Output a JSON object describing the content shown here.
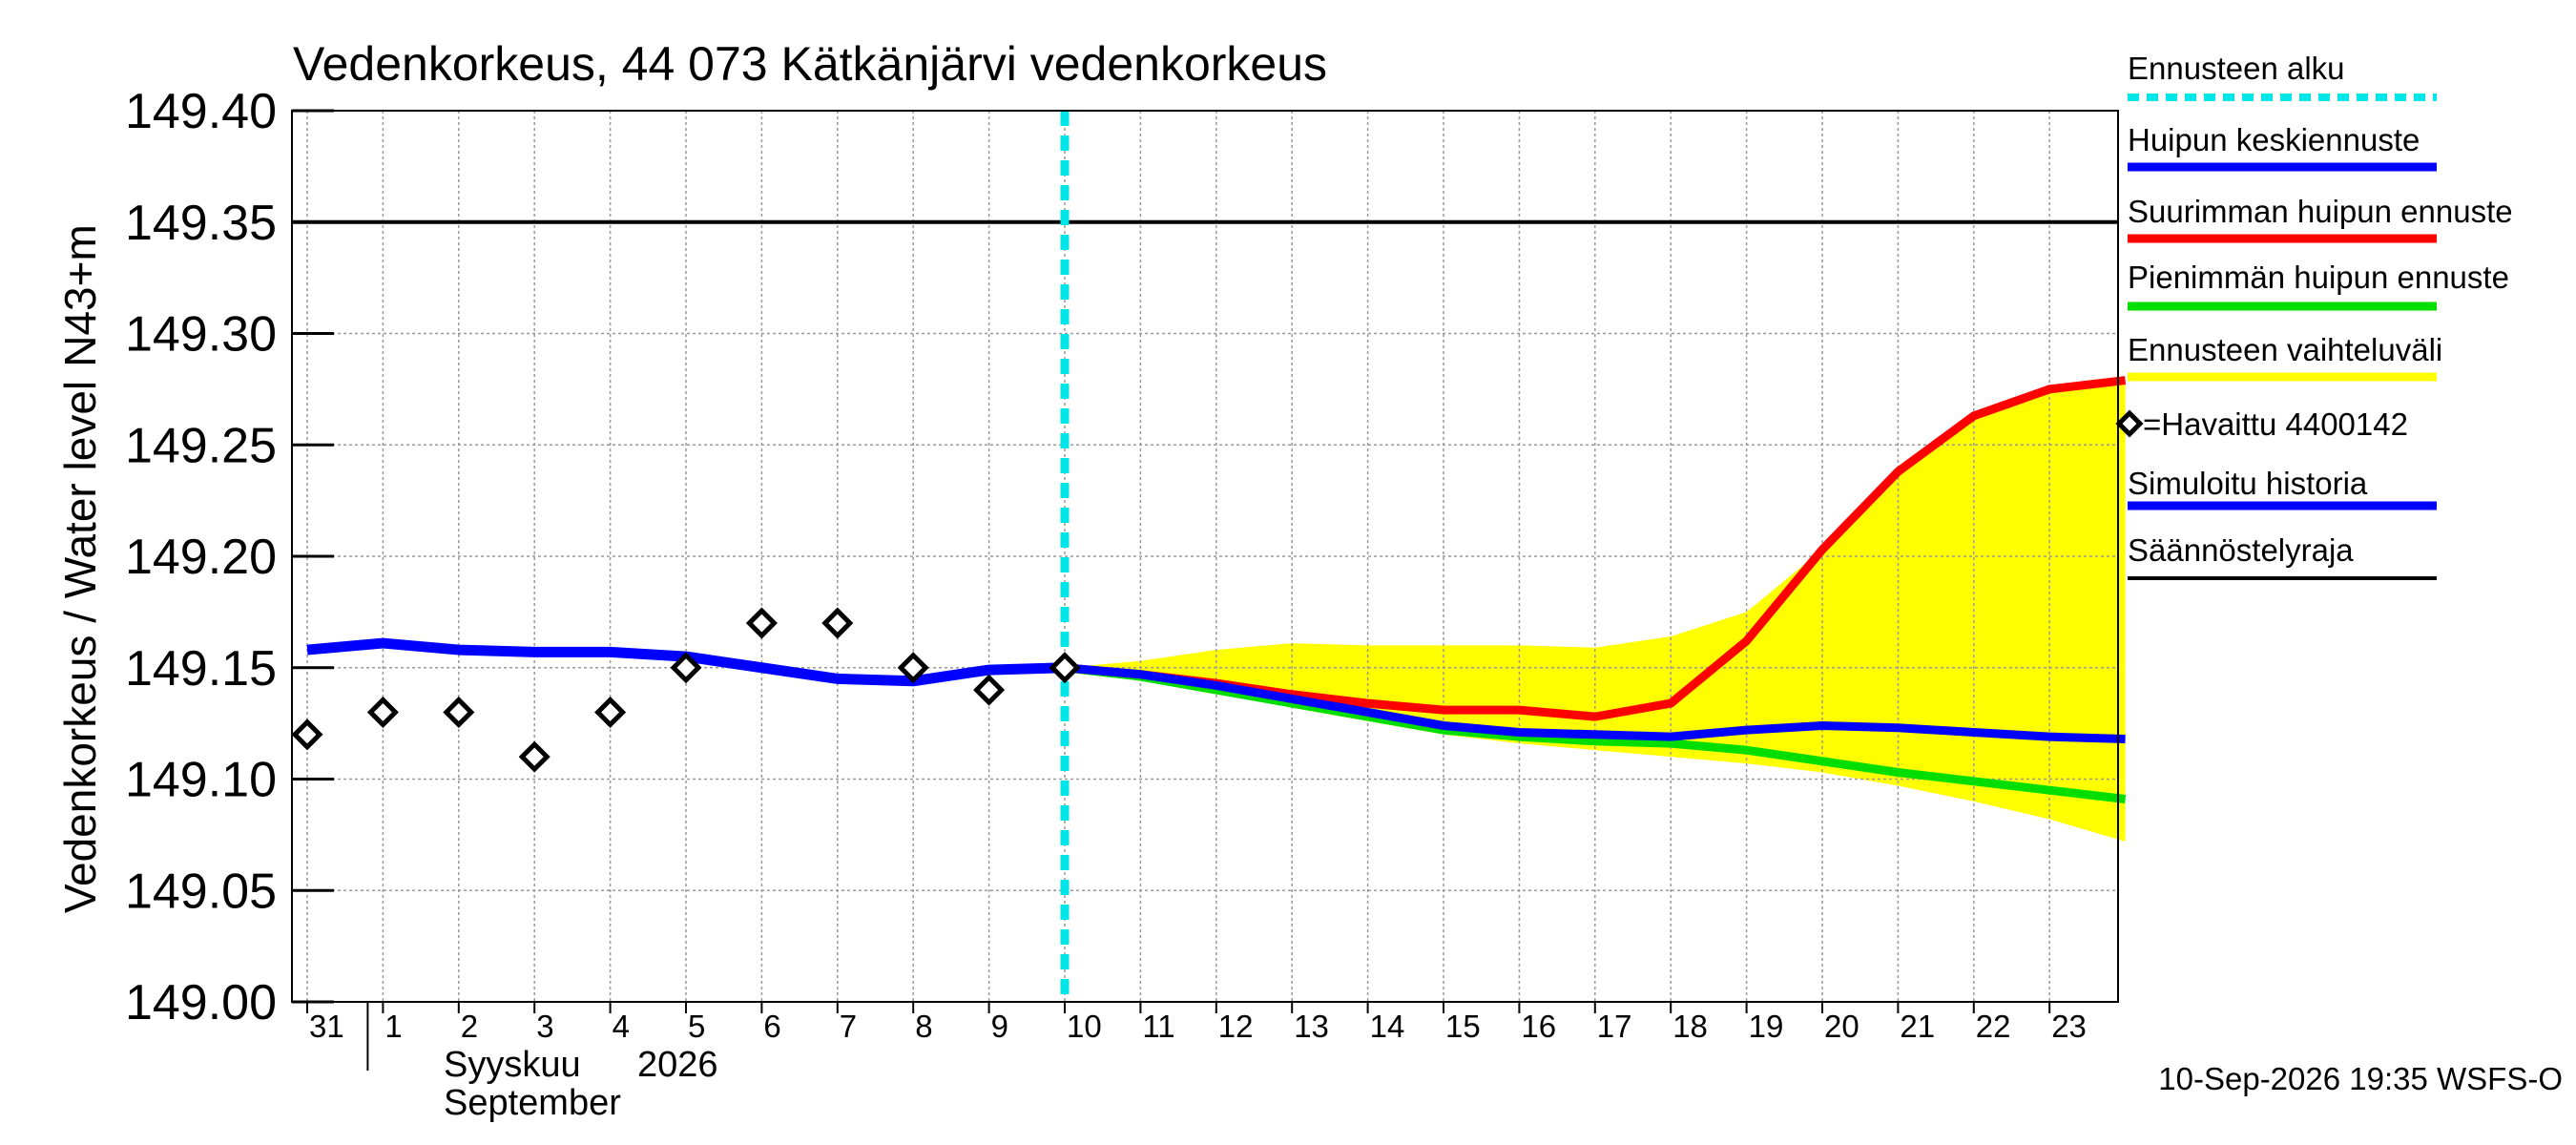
{
  "chart_data": {
    "type": "line",
    "title": "Vedenkorkeus, 44 073 Kätkänjärvi vedenkorkeus",
    "ylabel": "Vedenkorkeus / Water level",
    "yunit": "N43+m",
    "ylim": [
      149.0,
      149.4
    ],
    "yticks": [
      "149.00",
      "149.05",
      "149.10",
      "149.15",
      "149.20",
      "149.25",
      "149.30",
      "149.35",
      "149.40"
    ],
    "x_ticks": [
      "31",
      "1",
      "2",
      "3",
      "4",
      "5",
      "6",
      "7",
      "8",
      "9",
      "10",
      "11",
      "12",
      "13",
      "14",
      "15",
      "16",
      "17",
      "18",
      "19",
      "20",
      "21",
      "22",
      "23"
    ],
    "month_label_fi": "Syyskuu",
    "year_label": "2026",
    "month_label_en": "September",
    "grid": true,
    "legend_position": "right",
    "forecast_start": "2026-09-10",
    "regulation_limit": 149.35,
    "simulated_history": {
      "name": "Simuloitu historia",
      "color": "#0000ff",
      "x": [
        "2026-08-31",
        "2026-09-01",
        "2026-09-02",
        "2026-09-03",
        "2026-09-04",
        "2026-09-05",
        "2026-09-06",
        "2026-09-07",
        "2026-09-08",
        "2026-09-09",
        "2026-09-10"
      ],
      "values": [
        149.158,
        149.161,
        149.158,
        149.157,
        149.157,
        149.155,
        149.15,
        149.145,
        149.144,
        149.149,
        149.15
      ]
    },
    "observed": {
      "name": "=Havaittu 4400142",
      "x": [
        "2026-08-31",
        "2026-09-01",
        "2026-09-02",
        "2026-09-03",
        "2026-09-04",
        "2026-09-05",
        "2026-09-06",
        "2026-09-07",
        "2026-09-08",
        "2026-09-09",
        "2026-09-10"
      ],
      "values": [
        149.12,
        149.13,
        149.13,
        149.11,
        149.13,
        149.15,
        149.17,
        149.17,
        149.15,
        149.14,
        149.15
      ]
    },
    "forecast_x": [
      "2026-09-10",
      "2026-09-11",
      "2026-09-12",
      "2026-09-13",
      "2026-09-14",
      "2026-09-15",
      "2026-09-16",
      "2026-09-17",
      "2026-09-18",
      "2026-09-19",
      "2026-09-20",
      "2026-09-21",
      "2026-09-22",
      "2026-09-23",
      "2026-09-24"
    ],
    "series": [
      {
        "name": "Huipun keskiennuste",
        "color": "#0000ff",
        "values": [
          149.15,
          149.147,
          149.142,
          149.136,
          149.13,
          149.124,
          149.121,
          149.12,
          149.119,
          149.122,
          149.124,
          149.123,
          149.121,
          149.119,
          149.118
        ]
      },
      {
        "name": "Suurimman huipun ennuste",
        "color": "#ff0000",
        "values": [
          149.15,
          149.147,
          149.143,
          149.138,
          149.134,
          149.131,
          149.131,
          149.128,
          149.134,
          149.162,
          149.203,
          149.238,
          149.263,
          149.275,
          149.279
        ]
      },
      {
        "name": "Pienimmän huipun ennuste",
        "color": "#00dd00",
        "values": [
          149.15,
          149.146,
          149.14,
          149.134,
          149.128,
          149.122,
          149.119,
          149.117,
          149.116,
          149.113,
          149.108,
          149.103,
          149.099,
          149.095,
          149.091
        ]
      }
    ],
    "range_band": {
      "name": "Ennusteen vaihteluväli",
      "color": "#ffff00",
      "upper": [
        149.15,
        149.153,
        149.158,
        149.161,
        149.16,
        149.16,
        149.16,
        149.159,
        149.164,
        149.175,
        149.203,
        149.238,
        149.263,
        149.275,
        149.279
      ],
      "lower": [
        149.15,
        149.146,
        149.139,
        149.132,
        149.126,
        149.12,
        149.116,
        149.113,
        149.11,
        149.107,
        149.103,
        149.097,
        149.09,
        149.082,
        149.072
      ]
    },
    "legend": [
      {
        "label": "Ennusteen alku",
        "color": "#00e5e5",
        "style": "dashed"
      },
      {
        "label": "Huipun keskiennuste",
        "color": "#0000ff",
        "style": "solid"
      },
      {
        "label": "Suurimman huipun ennuste",
        "color": "#ff0000",
        "style": "solid"
      },
      {
        "label": "Pienimmän huipun ennuste",
        "color": "#00dd00",
        "style": "solid"
      },
      {
        "label": "Ennusteen vaihteluväli",
        "color": "#ffff00",
        "style": "solid"
      },
      {
        "label": "=Havaittu 4400142",
        "color": "#000000",
        "style": "marker"
      },
      {
        "label": "Simuloitu historia",
        "color": "#0000ff",
        "style": "solid"
      },
      {
        "label": "Säännöstelyraja",
        "color": "#000000",
        "style": "solid"
      }
    ],
    "footer": "10-Sep-2026 19:35 WSFS-O"
  }
}
